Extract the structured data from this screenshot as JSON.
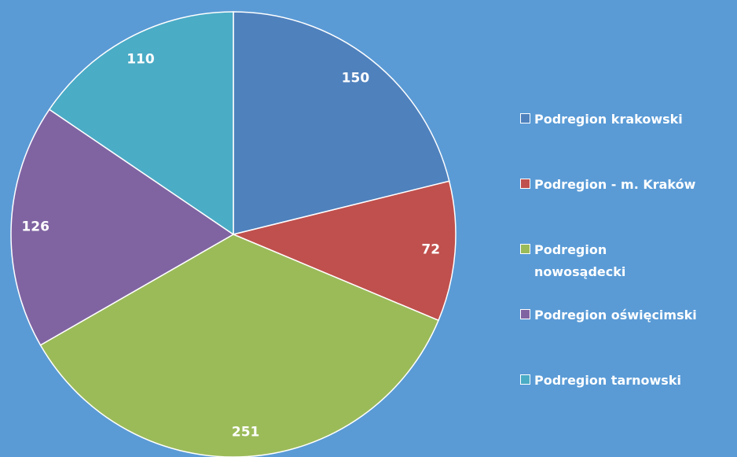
{
  "chart_data": {
    "type": "pie",
    "categories": [
      "Podregion krakowski",
      "Podregion - m. Kraków",
      "Podregion nowosądecki",
      "Podregion oświęcimski",
      "Podregion tarnowski"
    ],
    "values": [
      150,
      72,
      251,
      126,
      110
    ],
    "colors": [
      "#4f81bd",
      "#c0504d",
      "#9bbb59",
      "#8064a2",
      "#4bacc6"
    ],
    "legend": "right"
  }
}
